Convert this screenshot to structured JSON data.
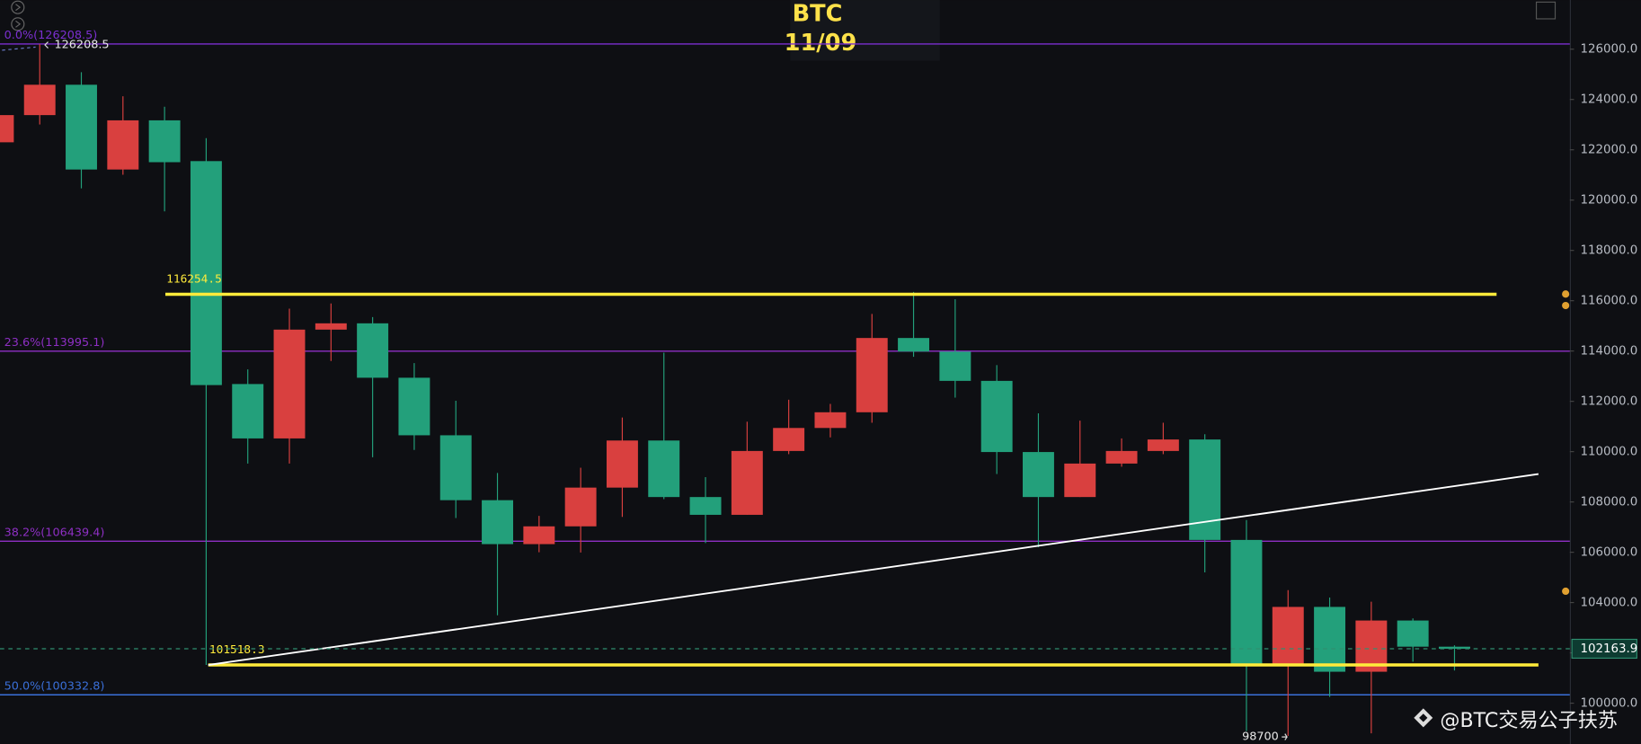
{
  "chart_data": {
    "type": "candlestick",
    "title": "BTC",
    "subtitle": "11/09",
    "watermark": "@BTC交易公子扶苏",
    "up_color": "#d9403f",
    "down_color": "#23a07b",
    "open": [
      122298,
      123379,
      124586,
      121216,
      123171,
      121550,
      112688,
      110525,
      114851,
      115101,
      112938,
      110650,
      108070,
      106323,
      107030,
      108570,
      110442,
      108195,
      107488,
      110026,
      110941,
      111565,
      114518,
      113978,
      112813,
      109984,
      108195,
      109526,
      110026,
      110483,
      106490,
      101500,
      103827,
      101250,
      103286,
      102246
    ],
    "high": [
      123500,
      126208.5,
      125085,
      124128,
      123712,
      122464,
      113270,
      115683,
      115891,
      115350,
      113520,
      112022,
      109152,
      107446,
      109360,
      111357,
      113936,
      108986,
      111190,
      112064,
      111898,
      115475,
      116349,
      116058,
      113440,
      111523,
      111232,
      110525,
      111149,
      110691,
      107280,
      104493,
      104200,
      104035,
      103370,
      102300
    ],
    "low": [
      122200,
      123005,
      120467,
      121008,
      119552,
      101518.3,
      109526,
      109526,
      113603,
      109776,
      110067,
      107363,
      103494,
      106000,
      105990,
      107405,
      108112,
      106365,
      107488,
      109900,
      110566,
      111149,
      113770,
      112147,
      109110,
      106200,
      108195,
      109400,
      109900,
      105200,
      98888.8,
      98700,
      100250,
      98800,
      101650,
      101300
    ],
    "close": [
      123379,
      124586,
      121216,
      123171,
      121507,
      112646,
      110525,
      114851,
      115101,
      112938,
      110650,
      108070,
      106323,
      107030,
      108570,
      110442,
      108195,
      107488,
      110026,
      110941,
      111565,
      114518,
      113978,
      112813,
      109984,
      108195,
      109526,
      110026,
      110483,
      106490,
      101518.3,
      103827,
      101250,
      103286,
      102246,
      102163.9
    ],
    "ylim": [
      98377,
      127955
    ],
    "yticks": [
      {
        "value": 100000,
        "label": "100000.0"
      },
      {
        "value": 102000,
        "label": "102000.0"
      },
      {
        "value": 104000,
        "label": "104000.0"
      },
      {
        "value": 106000,
        "label": "106000.0"
      },
      {
        "value": 108000,
        "label": "108000.0"
      },
      {
        "value": 110000,
        "label": "110000.0"
      },
      {
        "value": 112000,
        "label": "112000.0"
      },
      {
        "value": 114000,
        "label": "114000.0"
      },
      {
        "value": 116000,
        "label": "116000.0"
      },
      {
        "value": 118000,
        "label": "118000.0"
      },
      {
        "value": 120000,
        "label": "120000.0"
      },
      {
        "value": 122000,
        "label": "122000.0"
      },
      {
        "value": 124000,
        "label": "124000.0"
      },
      {
        "value": 126000,
        "label": "126000.0"
      }
    ],
    "grid": false,
    "levels": [
      {
        "value": 116254.5,
        "color": "#ffeb3b"
      },
      {
        "value": 101518.3,
        "color": "#ffeb3b"
      }
    ],
    "fib": [
      {
        "label": "0.0%(126208.5)",
        "value": 126208.5,
        "color": "#7b2fd0"
      },
      {
        "label": "23.6%(113995.1)",
        "value": 113995.1,
        "color": "#8e2fc4"
      },
      {
        "label": "38.2%(106439.4)",
        "value": 106439.4,
        "color": "#8e2fc4"
      },
      {
        "label": "50.0%(100332.8)",
        "value": 100332.8,
        "color": "#3a6fd8"
      }
    ],
    "trendline": {
      "from": 101518.3,
      "to": 109110,
      "color": "#ffffff"
    }
  }
}
